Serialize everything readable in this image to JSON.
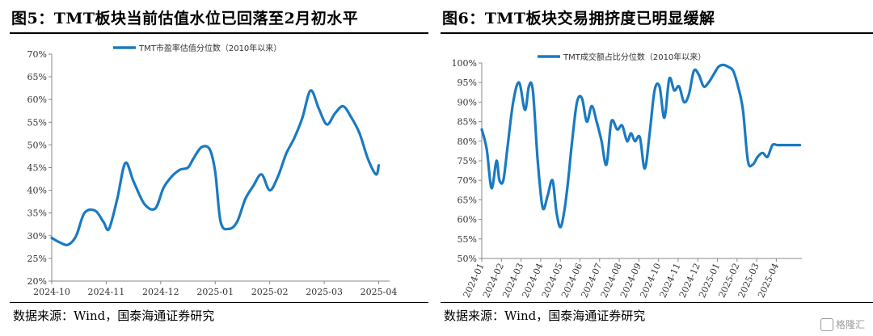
{
  "chart_data": [
    {
      "type": "line",
      "title": "图5：TMT板块当前估值水位已回落至2月初水平",
      "legend": [
        "TMT市盈率估值分位数（2010年以来）"
      ],
      "legend_position": "top-center",
      "line_color": "#1a7ac2",
      "xlabel": "",
      "ylabel": "",
      "x_tick_labels": [
        "2024-10",
        "2024-11",
        "2024-12",
        "2025-01",
        "2025-02",
        "2025-03",
        "2025-04"
      ],
      "y_tick_labels": [
        "20%",
        "25%",
        "30%",
        "35%",
        "40%",
        "45%",
        "50%",
        "55%",
        "60%",
        "65%",
        "70%"
      ],
      "ylim": [
        20,
        70
      ],
      "xlim": [
        0,
        6.2
      ],
      "grid": false,
      "series": [
        {
          "name": "TMT市盈率估值分位数（2010年以来）",
          "x": [
            0,
            0.15,
            0.3,
            0.45,
            0.6,
            0.8,
            0.95,
            1.05,
            1.2,
            1.35,
            1.5,
            1.7,
            1.9,
            2.05,
            2.2,
            2.35,
            2.5,
            2.6,
            2.75,
            2.9,
            3.0,
            3.1,
            3.25,
            3.4,
            3.55,
            3.7,
            3.85,
            4.0,
            4.15,
            4.3,
            4.45,
            4.6,
            4.75,
            4.9,
            5.05,
            5.2,
            5.35,
            5.5,
            5.65,
            5.8,
            5.95,
            6.0
          ],
          "y": [
            29.5,
            28.5,
            28,
            30,
            35,
            35.5,
            33,
            31.5,
            38,
            46,
            42,
            37,
            36,
            40.5,
            43,
            44.5,
            45,
            47,
            49.5,
            49,
            44,
            33,
            31.5,
            33,
            38,
            41,
            43.5,
            40,
            43,
            48,
            51.5,
            56,
            62,
            58,
            54.5,
            57,
            58.5,
            56,
            52.5,
            47,
            43.5,
            45.5
          ]
        }
      ]
    },
    {
      "type": "line",
      "title": "图6：TMT板块交易拥挤度已明显缓解",
      "legend": [
        "TMT成交额占比分位数（2010年以来）"
      ],
      "legend_position": "top-center",
      "line_color": "#1a7ac2",
      "xlabel": "",
      "ylabel": "",
      "x_tick_labels": [
        "2024-01",
        "2024-02",
        "2024-03",
        "2024-04",
        "2024-05",
        "2024-06",
        "2024-07",
        "2024-08",
        "2024-09",
        "2024-10",
        "2024-11",
        "2024-12",
        "2025-01",
        "2025-02",
        "2025-03",
        "2025-04"
      ],
      "y_tick_labels": [
        "50%",
        "55%",
        "60%",
        "65%",
        "70%",
        "75%",
        "80%",
        "85%",
        "90%",
        "95%",
        "100%"
      ],
      "ylim": [
        50,
        100
      ],
      "xlim": [
        0,
        16.3
      ],
      "grid": false,
      "series": [
        {
          "name": "TMT成交额占比分位数（2010年以来）",
          "x": [
            0,
            0.25,
            0.5,
            0.75,
            0.9,
            1.1,
            1.3,
            1.6,
            1.9,
            2.2,
            2.4,
            2.6,
            2.85,
            3.1,
            3.35,
            3.6,
            3.8,
            4.0,
            4.2,
            4.4,
            4.6,
            4.85,
            5.1,
            5.35,
            5.6,
            5.85,
            6.1,
            6.35,
            6.6,
            6.9,
            7.15,
            7.4,
            7.6,
            7.8,
            8.05,
            8.3,
            8.55,
            8.8,
            9.05,
            9.3,
            9.55,
            9.8,
            10.05,
            10.3,
            10.55,
            10.8,
            11.05,
            11.3,
            11.55,
            11.8,
            12.05,
            12.3,
            12.55,
            12.8,
            13.05,
            13.3,
            13.55,
            13.8,
            14.05,
            14.3,
            14.55,
            14.8,
            15.05,
            15.3,
            15.55,
            15.8,
            16.05,
            16.2
          ],
          "y": [
            83,
            78,
            68,
            75,
            70,
            70,
            78,
            90,
            95,
            88,
            94,
            93,
            75,
            63,
            66,
            70,
            62,
            58,
            62,
            70,
            80,
            90,
            91,
            85,
            89,
            85,
            80,
            74,
            85,
            83,
            84,
            80,
            82,
            80,
            81,
            73,
            82,
            93,
            94,
            86,
            96,
            93,
            94,
            90,
            92,
            98,
            97,
            94,
            95,
            97,
            99,
            99.5,
            99,
            98,
            94,
            88,
            75,
            74,
            76,
            77,
            76,
            79,
            79,
            79,
            79,
            79,
            79,
            79
          ]
        }
      ]
    }
  ],
  "page": {
    "source_left": "数据来源：Wind，国泰海通证券研究",
    "source_right": "数据来源：Wind，国泰海通证券研究",
    "watermark": "格隆汇"
  }
}
